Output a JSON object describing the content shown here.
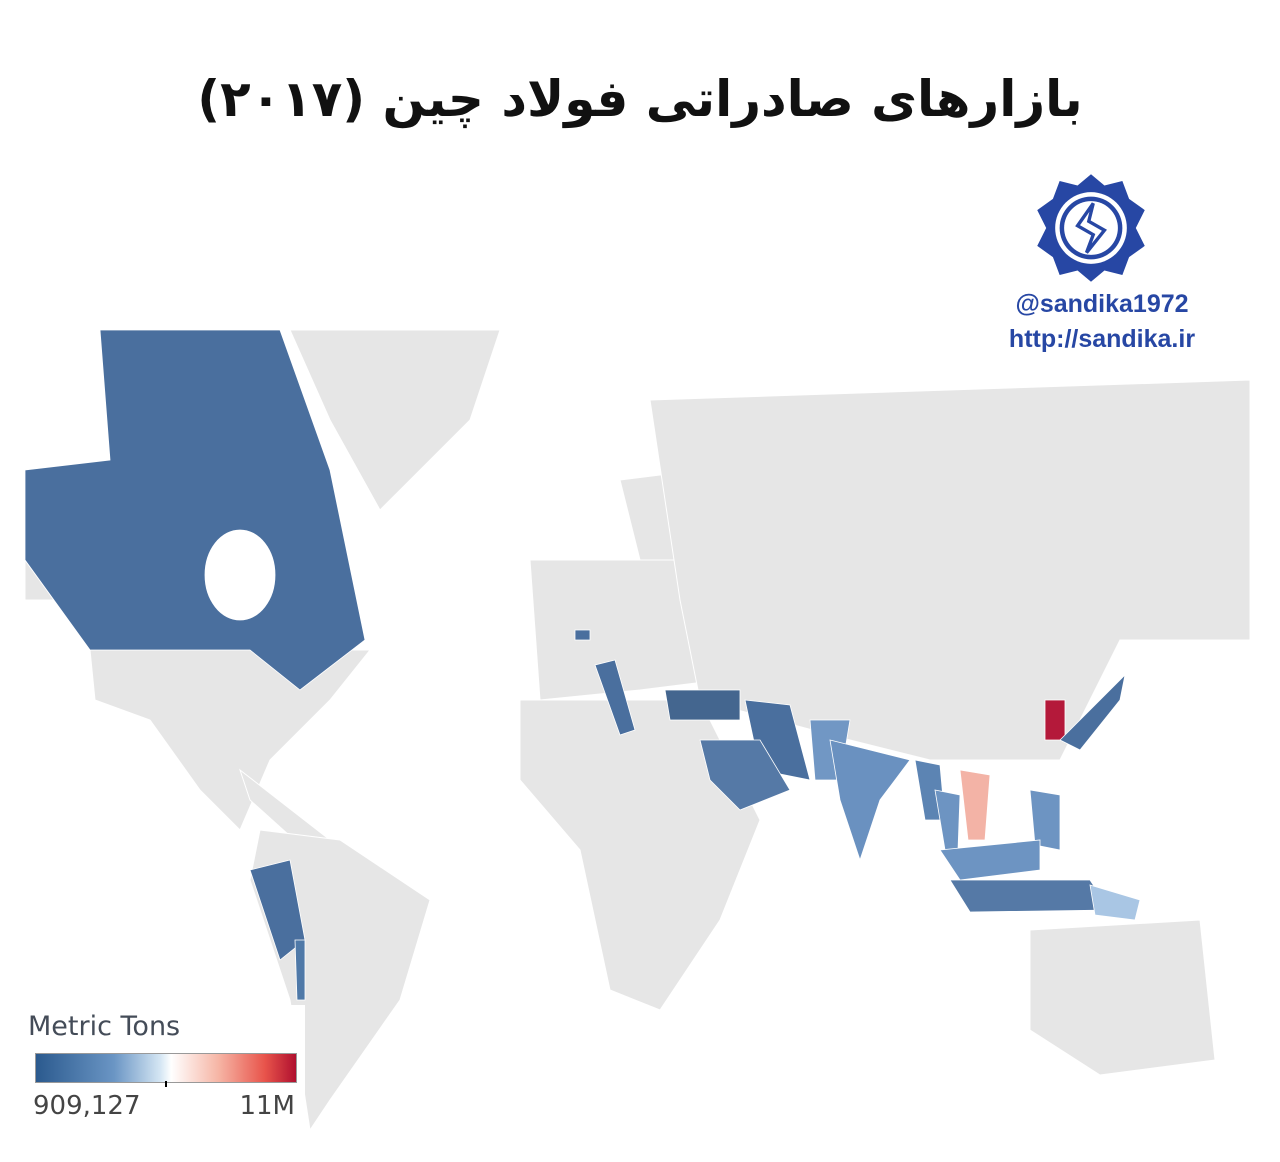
{
  "title": "بازارهای صادراتی فولاد چین (۲۰۱۷)",
  "brand": {
    "handle": "@sandika1972",
    "url": "http://sandika.ir",
    "color": "#2747a4"
  },
  "legend": {
    "title": "Metric Tons",
    "min_label": "909,127",
    "max_label": "11M",
    "min_color": "#2b5a8e",
    "mid_color": "#ffffff",
    "max_color": "#b0102f"
  },
  "map": {
    "base_color": "#e6e6e6",
    "highlighted_regions": [
      {
        "id": "canada",
        "color": "#4a6f9e"
      },
      {
        "id": "peru",
        "color": "#4a6f9e"
      },
      {
        "id": "chile",
        "color": "#4f79a8"
      },
      {
        "id": "belgium",
        "color": "#4a6f9e"
      },
      {
        "id": "italy",
        "color": "#4a6f9e"
      },
      {
        "id": "turkey",
        "color": "#44668f"
      },
      {
        "id": "iran",
        "color": "#4a6f9e"
      },
      {
        "id": "saudi-arabia",
        "color": "#5579a6"
      },
      {
        "id": "pakistan",
        "color": "#7197c4"
      },
      {
        "id": "india",
        "color": "#6a91c0"
      },
      {
        "id": "myanmar",
        "color": "#5c84b3"
      },
      {
        "id": "thailand",
        "color": "#6d94c2"
      },
      {
        "id": "vietnam",
        "color": "#f3b3a6"
      },
      {
        "id": "south-korea",
        "color": "#b4193a"
      },
      {
        "id": "japan",
        "color": "#4a6f9e"
      },
      {
        "id": "philippines",
        "color": "#6d94c2"
      },
      {
        "id": "malaysia",
        "color": "#6d94c2"
      },
      {
        "id": "indonesia",
        "color": "#5579a6"
      },
      {
        "id": "papua-new-guinea",
        "color": "#a9c6e4"
      }
    ]
  }
}
